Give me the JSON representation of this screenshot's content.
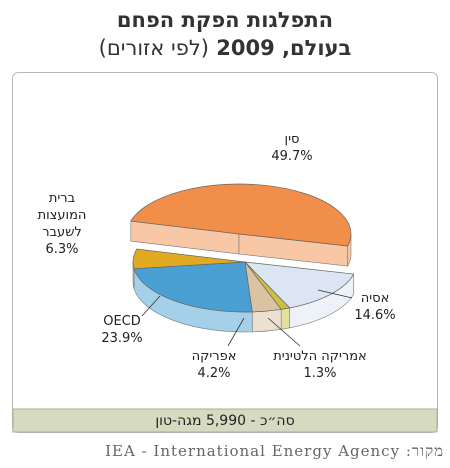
{
  "chart_data": {
    "type": "pie3d",
    "title": "התפלגות הפקת הפחם",
    "title_line2": "בעולם, 2009",
    "subtitle": "(לפי אזורים)",
    "categories": [
      "סין",
      "אסיה",
      "אמריקה הלטינית",
      "אפריקה",
      "OECD",
      "ברית המועצות לשעבר"
    ],
    "values": [
      49.7,
      14.6,
      1.3,
      4.2,
      23.9,
      6.3
    ],
    "value_labels": [
      "49.7%",
      "14.6%",
      "1.3%",
      "4.2%",
      "23.9%",
      "6.3%"
    ],
    "colors": [
      "#f08e4a",
      "#dbe5f3",
      "#c9c23c",
      "#d9c3a3",
      "#4aa0d2",
      "#e2aa22"
    ],
    "total_note": "סה״כ - 5,990 מגה-טון",
    "source": "מקור: IEA - International Energy Agency"
  }
}
